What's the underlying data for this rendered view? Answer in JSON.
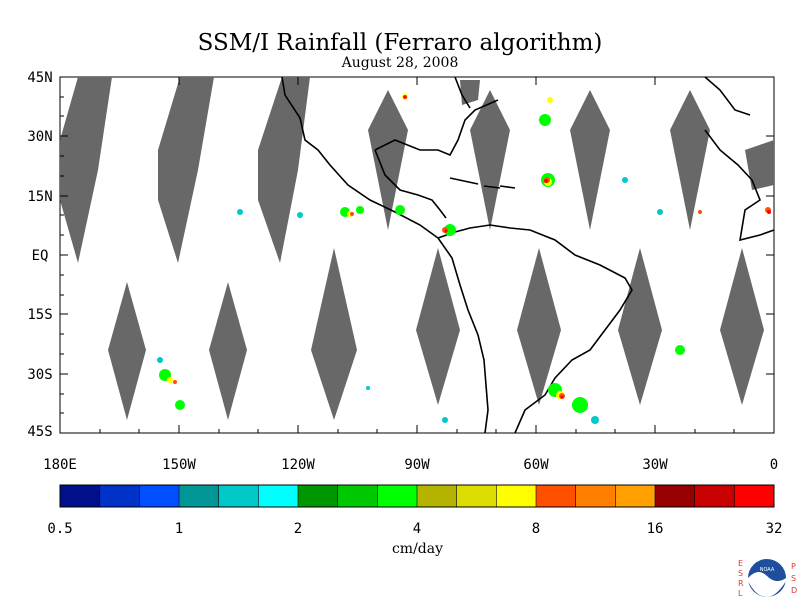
{
  "header": {
    "title": "SSM/I Rainfall (Ferraro algorithm)",
    "date": "August 28, 2008"
  },
  "map": {
    "lat_labels": [
      "45N",
      "30N",
      "15N",
      "EQ",
      "15S",
      "30S",
      "45S"
    ],
    "lon_labels": [
      "180E",
      "150W",
      "120W",
      "90W",
      "60W",
      "30W",
      "0"
    ],
    "missing_data_color": "#686868",
    "coast_color": "#000000"
  },
  "colorbar": {
    "colors": [
      "#00108a",
      "#0032c8",
      "#0050ff",
      "#009696",
      "#00c8c8",
      "#00ffff",
      "#009600",
      "#00c800",
      "#00ff00",
      "#b4b400",
      "#dcdc00",
      "#ffff00",
      "#ff5000",
      "#ff8000",
      "#ffa000",
      "#960000",
      "#c80000",
      "#ff0000"
    ],
    "tick_labels": [
      "0.5",
      "1",
      "2",
      "4",
      "8",
      "16",
      "32"
    ],
    "units": "cm/day"
  },
  "logo": {
    "left_letters": [
      "E",
      "S",
      "R",
      "L"
    ],
    "right_letters": [
      "P",
      "S",
      "D"
    ],
    "name": "NOAA"
  }
}
